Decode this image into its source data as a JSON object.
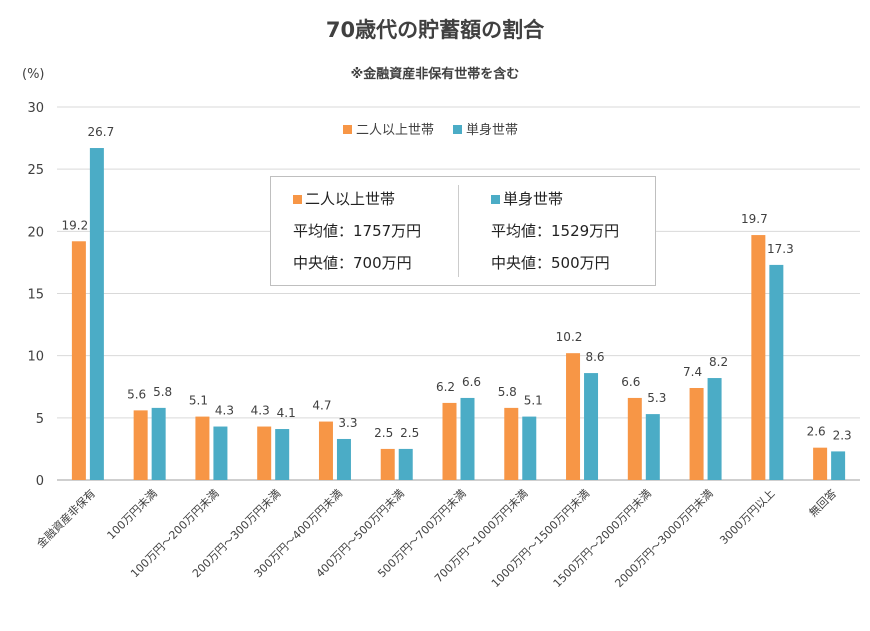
{
  "chart_data": {
    "type": "bar",
    "title": "70歳代の貯蓄額の割合",
    "subtitle": "※金融資産非保有世帯を含む",
    "ylabel": "(%)",
    "ylim": [
      0,
      30
    ],
    "yticks": [
      0,
      5,
      10,
      15,
      20,
      25,
      30
    ],
    "grid": true,
    "legend_placement": "top-center",
    "categories": [
      "金融資産非保有",
      "100万円未満",
      "100万円～200万円未満",
      "200万円～300万円未満",
      "300万円～400万円未満",
      "400万円～500万円未満",
      "500万円～700万円未満",
      "700万円～1000万円未満",
      "1000万円～1500万円未満",
      "1500万円～2000万円未満",
      "2000万円～3000万円未満",
      "3000万円以上",
      "無回答"
    ],
    "series": [
      {
        "name": "二人以上世帯",
        "color": "#F79646",
        "values": [
          19.2,
          5.6,
          5.1,
          4.3,
          4.7,
          2.5,
          6.2,
          5.8,
          10.2,
          6.6,
          7.4,
          19.7,
          2.6
        ]
      },
      {
        "name": "単身世帯",
        "color": "#4BACC6",
        "values": [
          26.7,
          5.8,
          4.3,
          4.1,
          3.3,
          2.5,
          6.6,
          5.1,
          8.6,
          5.3,
          8.2,
          17.3,
          2.3
        ]
      }
    ]
  },
  "info_box": {
    "left": {
      "name": "二人以上世帯",
      "mean": "平均値：1757万円",
      "median": "中央値：700万円"
    },
    "right": {
      "name": "単身世帯",
      "mean": "平均値：1529万円",
      "median": "中央値：500万円"
    }
  }
}
